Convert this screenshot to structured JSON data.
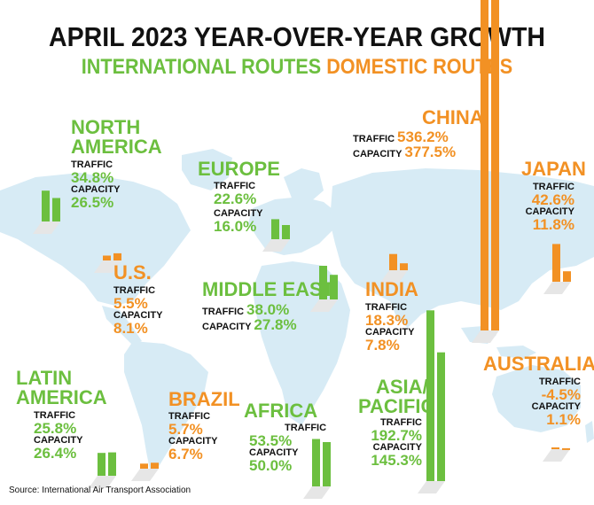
{
  "title": "APRIL 2023 YEAR-OVER-YEAR GROWTH",
  "legend": {
    "international": "INTERNATIONAL ROUTES",
    "domestic": "DOMESTIC ROUTES"
  },
  "labels": {
    "traffic": "TRAFFIC",
    "capacity": "CAPACITY"
  },
  "colors": {
    "international": "#6cbf3f",
    "domestic": "#f29124",
    "map": "#d7ebf5"
  },
  "source": "Source: International Air Transport Association",
  "chart_data": {
    "type": "bar",
    "title": "APRIL 2023 YEAR-OVER-YEAR GROWTH",
    "series_names": [
      "TRAFFIC",
      "CAPACITY"
    ],
    "regions": [
      {
        "id": "north_america",
        "name_lines": [
          "NORTH",
          "AMERICA"
        ],
        "route": "international",
        "traffic": "34.8%",
        "capacity": "26.5%",
        "traffic_value": 34.8,
        "capacity_value": 26.5
      },
      {
        "id": "europe",
        "name_lines": [
          "EUROPE"
        ],
        "route": "international",
        "traffic": "22.6%",
        "capacity": "16.0%",
        "traffic_value": 22.6,
        "capacity_value": 16.0
      },
      {
        "id": "middle_east",
        "name_lines": [
          "MIDDLE EAST"
        ],
        "route": "international",
        "traffic": "38.0%",
        "capacity": "27.8%",
        "traffic_value": 38.0,
        "capacity_value": 27.8
      },
      {
        "id": "latin_america",
        "name_lines": [
          "LATIN",
          "AMERICA"
        ],
        "route": "international",
        "traffic": "25.8%",
        "capacity": "26.4%",
        "traffic_value": 25.8,
        "capacity_value": 26.4
      },
      {
        "id": "africa",
        "name_lines": [
          "AFRICA"
        ],
        "route": "international",
        "traffic": "53.5%",
        "capacity": "50.0%",
        "traffic_value": 53.5,
        "capacity_value": 50.0
      },
      {
        "id": "asia_pacific",
        "name_lines": [
          "ASIA/",
          "PACIFIC"
        ],
        "route": "international",
        "traffic": "192.7%",
        "capacity": "145.3%",
        "traffic_value": 192.7,
        "capacity_value": 145.3
      },
      {
        "id": "china",
        "name_lines": [
          "CHINA"
        ],
        "route": "domestic",
        "traffic": "536.2%",
        "capacity": "377.5%",
        "traffic_value": 536.2,
        "capacity_value": 377.5
      },
      {
        "id": "japan",
        "name_lines": [
          "JAPAN"
        ],
        "route": "domestic",
        "traffic": "42.6%",
        "capacity": "11.8%",
        "traffic_value": 42.6,
        "capacity_value": 11.8
      },
      {
        "id": "us",
        "name_lines": [
          "U.S."
        ],
        "route": "domestic",
        "traffic": "5.5%",
        "capacity": "8.1%",
        "traffic_value": 5.5,
        "capacity_value": 8.1
      },
      {
        "id": "india",
        "name_lines": [
          "INDIA"
        ],
        "route": "domestic",
        "traffic": "18.3%",
        "capacity": "7.8%",
        "traffic_value": 18.3,
        "capacity_value": 7.8
      },
      {
        "id": "brazil",
        "name_lines": [
          "BRAZIL"
        ],
        "route": "domestic",
        "traffic": "5.7%",
        "capacity": "6.7%",
        "traffic_value": 5.7,
        "capacity_value": 6.7
      },
      {
        "id": "australia",
        "name_lines": [
          "AUSTRALIA"
        ],
        "route": "domestic",
        "traffic": "-4.5%",
        "capacity": "1.1%",
        "traffic_value": -4.5,
        "capacity_value": 1.1
      }
    ]
  }
}
